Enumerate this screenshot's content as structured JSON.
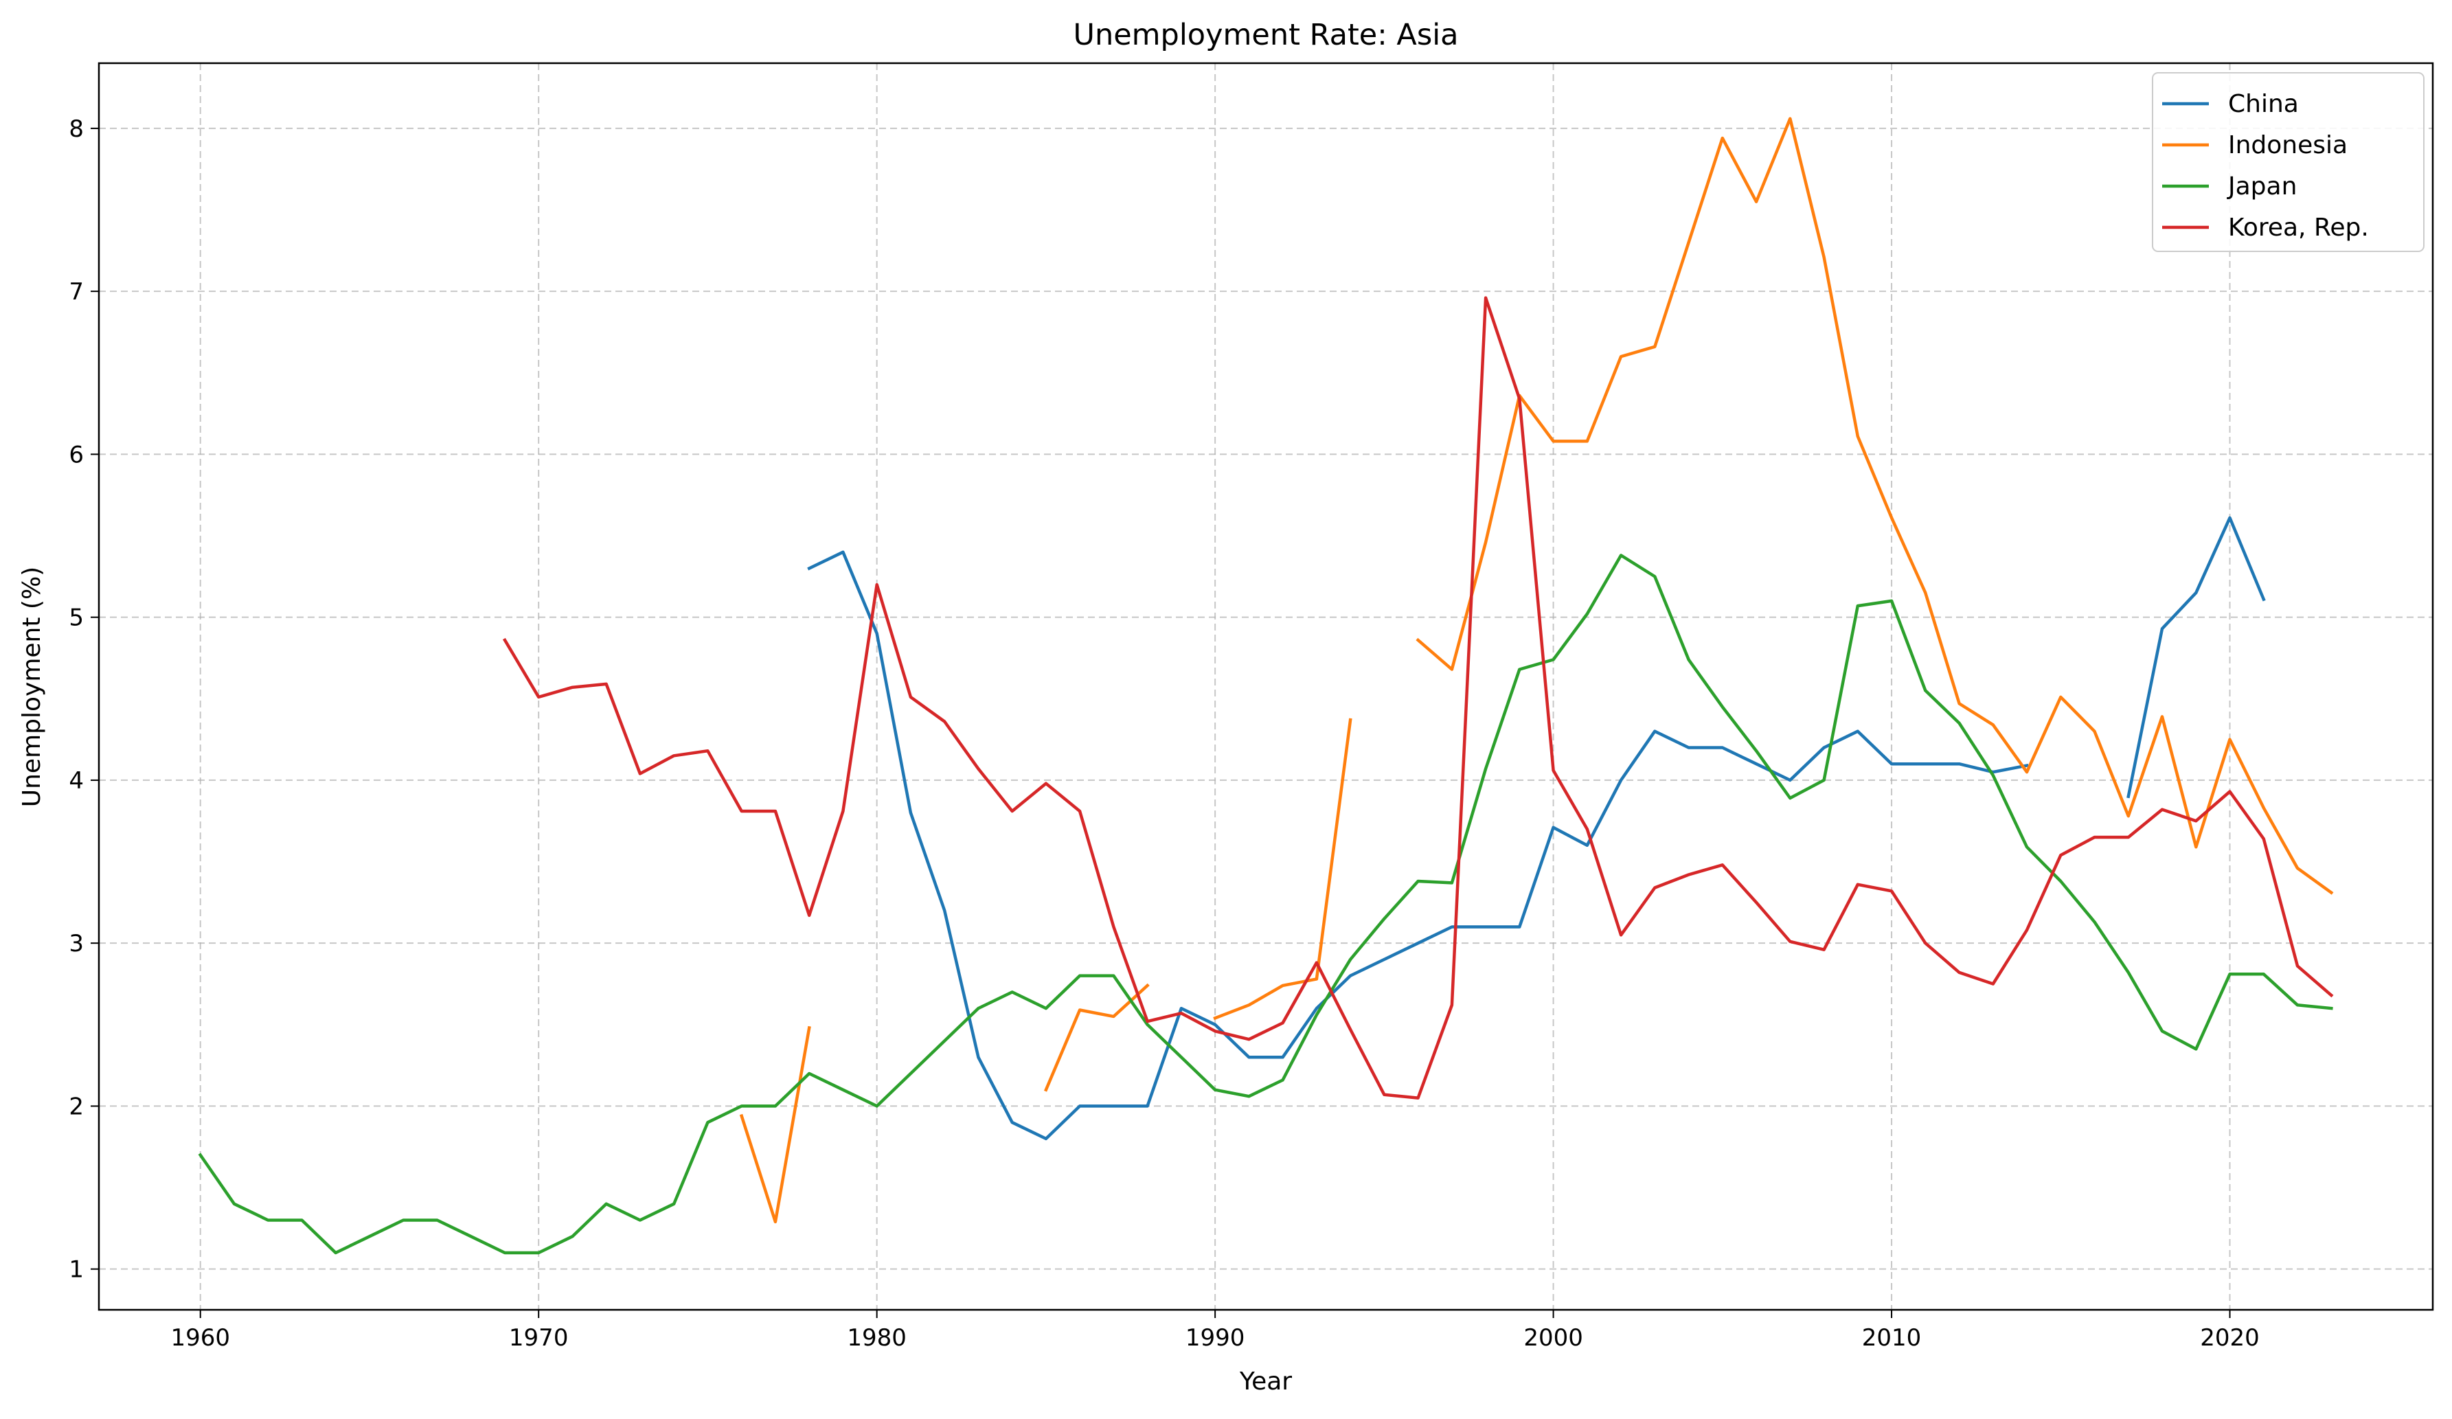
{
  "chart_data": {
    "type": "line",
    "title": "Unemployment Rate: Asia",
    "xlabel": "Year",
    "ylabel": "Unemployment (%)",
    "xlim": [
      1957,
      2026
    ],
    "ylim": [
      0.75,
      8.4
    ],
    "xticks": [
      1960,
      1970,
      1980,
      1990,
      2000,
      2010,
      2020
    ],
    "yticks": [
      1,
      2,
      3,
      4,
      5,
      6,
      7,
      8
    ],
    "grid": true,
    "legend_position": "top-right",
    "series": [
      {
        "name": "China",
        "color": "#1f77b4",
        "points": [
          [
            1978,
            5.3
          ],
          [
            1979,
            5.4
          ],
          [
            1980,
            4.9
          ],
          [
            1981,
            3.8
          ],
          [
            1982,
            3.2
          ],
          [
            1983,
            2.3
          ],
          [
            1984,
            1.9
          ],
          [
            1985,
            1.8
          ],
          [
            1986,
            2.0
          ],
          [
            1987,
            2.0
          ],
          [
            1988,
            2.0
          ],
          [
            1989,
            2.6
          ],
          [
            1990,
            2.5
          ],
          [
            1991,
            2.3
          ],
          [
            1992,
            2.3
          ],
          [
            1993,
            2.6
          ],
          [
            1994,
            2.8
          ],
          [
            1995,
            2.9
          ],
          [
            1996,
            3.0
          ],
          [
            1997,
            3.1
          ],
          [
            1998,
            3.1
          ],
          [
            1999,
            3.1
          ],
          [
            2000,
            3.71
          ],
          [
            2001,
            3.6
          ],
          [
            2002,
            4.0
          ],
          [
            2003,
            4.3
          ],
          [
            2004,
            4.2
          ],
          [
            2005,
            4.2
          ],
          [
            2006,
            4.1
          ],
          [
            2007,
            4.0
          ],
          [
            2008,
            4.2
          ],
          [
            2009,
            4.3
          ],
          [
            2010,
            4.1
          ],
          [
            2011,
            4.1
          ],
          [
            2012,
            4.1
          ],
          [
            2013,
            4.05
          ],
          [
            2014,
            4.09
          ],
          null,
          [
            2017,
            3.9
          ],
          [
            2018,
            4.93
          ],
          [
            2019,
            5.15
          ],
          [
            2020,
            5.61
          ],
          [
            2021,
            5.11
          ]
        ]
      },
      {
        "name": "Indonesia",
        "color": "#ff7f0e",
        "points": [
          [
            1976,
            1.94
          ],
          [
            1977,
            1.29
          ],
          [
            1978,
            2.48
          ],
          null,
          [
            1985,
            2.1
          ],
          [
            1986,
            2.59
          ],
          [
            1987,
            2.55
          ],
          [
            1988,
            2.74
          ],
          null,
          [
            1990,
            2.54
          ],
          [
            1991,
            2.62
          ],
          [
            1992,
            2.74
          ],
          [
            1993,
            2.78
          ],
          [
            1994,
            4.37
          ],
          null,
          [
            1996,
            4.86
          ],
          [
            1997,
            4.68
          ],
          [
            1998,
            5.46
          ],
          [
            1999,
            6.36
          ],
          [
            2000,
            6.08
          ],
          [
            2001,
            6.08
          ],
          [
            2002,
            6.6
          ],
          [
            2003,
            6.66
          ],
          [
            2004,
            7.3
          ],
          [
            2005,
            7.94
          ],
          [
            2006,
            7.55
          ],
          [
            2007,
            8.06
          ],
          [
            2008,
            7.21
          ],
          [
            2009,
            6.11
          ],
          [
            2010,
            5.61
          ],
          [
            2011,
            5.15
          ],
          [
            2012,
            4.47
          ],
          [
            2013,
            4.34
          ],
          [
            2014,
            4.05
          ],
          [
            2015,
            4.51
          ],
          [
            2016,
            4.3
          ],
          [
            2017,
            3.78
          ],
          [
            2018,
            4.39
          ],
          [
            2019,
            3.59
          ],
          [
            2020,
            4.25
          ],
          [
            2021,
            3.83
          ],
          [
            2022,
            3.46
          ],
          [
            2023,
            3.31
          ]
        ]
      },
      {
        "name": "Japan",
        "color": "#2ca02c",
        "points": [
          [
            1960,
            1.7
          ],
          [
            1961,
            1.4
          ],
          [
            1962,
            1.3
          ],
          [
            1963,
            1.3
          ],
          [
            1964,
            1.1
          ],
          [
            1965,
            1.2
          ],
          [
            1966,
            1.3
          ],
          [
            1967,
            1.3
          ],
          [
            1968,
            1.2
          ],
          [
            1969,
            1.1
          ],
          [
            1970,
            1.1
          ],
          [
            1971,
            1.2
          ],
          [
            1972,
            1.4
          ],
          [
            1973,
            1.3
          ],
          [
            1974,
            1.4
          ],
          [
            1975,
            1.9
          ],
          [
            1976,
            2.0
          ],
          [
            1977,
            2.0
          ],
          [
            1978,
            2.2
          ],
          [
            1979,
            2.1
          ],
          [
            1980,
            2.0
          ],
          [
            1981,
            2.2
          ],
          [
            1982,
            2.4
          ],
          [
            1983,
            2.6
          ],
          [
            1984,
            2.7
          ],
          [
            1985,
            2.6
          ],
          [
            1986,
            2.8
          ],
          [
            1987,
            2.8
          ],
          [
            1988,
            2.5
          ],
          [
            1989,
            2.3
          ],
          [
            1990,
            2.1
          ],
          [
            1991,
            2.06
          ],
          [
            1992,
            2.16
          ],
          [
            1993,
            2.56
          ],
          [
            1994,
            2.9
          ],
          [
            1995,
            3.15
          ],
          [
            1996,
            3.38
          ],
          [
            1997,
            3.37
          ],
          [
            1998,
            4.07
          ],
          [
            1999,
            4.68
          ],
          [
            2000,
            4.74
          ],
          [
            2001,
            5.02
          ],
          [
            2002,
            5.38
          ],
          [
            2003,
            5.25
          ],
          [
            2004,
            4.74
          ],
          [
            2005,
            4.45
          ],
          [
            2006,
            4.18
          ],
          [
            2007,
            3.89
          ],
          [
            2008,
            4.0
          ],
          [
            2009,
            5.07
          ],
          [
            2010,
            5.1
          ],
          [
            2011,
            4.55
          ],
          [
            2012,
            4.35
          ],
          [
            2013,
            4.03
          ],
          [
            2014,
            3.59
          ],
          [
            2015,
            3.38
          ],
          [
            2016,
            3.13
          ],
          [
            2017,
            2.82
          ],
          [
            2018,
            2.46
          ],
          [
            2019,
            2.35
          ],
          [
            2020,
            2.81
          ],
          [
            2021,
            2.81
          ],
          [
            2022,
            2.62
          ],
          [
            2023,
            2.6
          ]
        ]
      },
      {
        "name": "Korea, Rep.",
        "color": "#d62728",
        "points": [
          [
            1969,
            4.86
          ],
          [
            1970,
            4.51
          ],
          [
            1971,
            4.57
          ],
          [
            1972,
            4.59
          ],
          [
            1973,
            4.04
          ],
          [
            1974,
            4.15
          ],
          [
            1975,
            4.18
          ],
          [
            1976,
            3.81
          ],
          [
            1977,
            3.81
          ],
          [
            1978,
            3.17
          ],
          [
            1979,
            3.81
          ],
          [
            1980,
            5.2
          ],
          [
            1981,
            4.51
          ],
          [
            1982,
            4.36
          ],
          [
            1983,
            4.07
          ],
          [
            1984,
            3.81
          ],
          [
            1985,
            3.98
          ],
          [
            1986,
            3.81
          ],
          [
            1987,
            3.1
          ],
          [
            1988,
            2.52
          ],
          [
            1989,
            2.57
          ],
          [
            1990,
            2.46
          ],
          [
            1991,
            2.41
          ],
          [
            1992,
            2.51
          ],
          [
            1993,
            2.88
          ],
          [
            1994,
            2.47
          ],
          [
            1995,
            2.07
          ],
          [
            1996,
            2.05
          ],
          [
            1997,
            2.62
          ],
          [
            1998,
            6.96
          ],
          [
            1999,
            6.34
          ],
          [
            2000,
            4.06
          ],
          [
            2001,
            3.7
          ],
          [
            2002,
            3.05
          ],
          [
            2003,
            3.34
          ],
          [
            2004,
            3.42
          ],
          [
            2005,
            3.48
          ],
          [
            2006,
            3.25
          ],
          [
            2007,
            3.01
          ],
          [
            2008,
            2.96
          ],
          [
            2009,
            3.36
          ],
          [
            2010,
            3.32
          ],
          [
            2011,
            3.0
          ],
          [
            2012,
            2.82
          ],
          [
            2013,
            2.75
          ],
          [
            2014,
            3.08
          ],
          [
            2015,
            3.54
          ],
          [
            2016,
            3.65
          ],
          [
            2017,
            3.65
          ],
          [
            2018,
            3.82
          ],
          [
            2019,
            3.75
          ],
          [
            2020,
            3.93
          ],
          [
            2021,
            3.64
          ],
          [
            2022,
            2.86
          ],
          [
            2023,
            2.68
          ]
        ]
      }
    ]
  }
}
